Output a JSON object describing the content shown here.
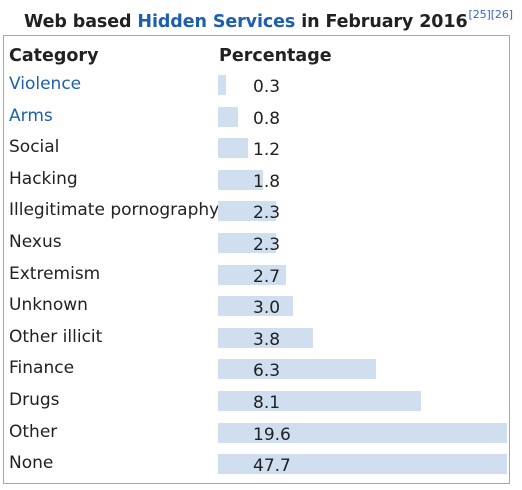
{
  "caption": {
    "prefix": "Web based ",
    "link": "Hidden Services",
    "suffix": " in February 2016",
    "refs": [
      "[25]",
      "[26]"
    ]
  },
  "colors": {
    "bar": "#cfdff0",
    "link": "#1c5fb1",
    "border": "#a2a9b1"
  },
  "chart_data": {
    "type": "bar",
    "orientation": "horizontal",
    "column_headers": [
      "Category",
      "Percentage"
    ],
    "categories": [
      "Violence",
      "Arms",
      "Social",
      "Hacking",
      "Illegitimate pornography",
      "Nexus",
      "Extremism",
      "Unknown",
      "Other illicit",
      "Finance",
      "Drugs",
      "Other",
      "None"
    ],
    "values": [
      0.3,
      0.8,
      1.2,
      1.8,
      2.3,
      2.3,
      2.7,
      3.0,
      3.8,
      6.3,
      8.1,
      19.6,
      47.7
    ],
    "value_labels": [
      "0.3",
      "0.8",
      "1.2",
      "1.8",
      "2.3",
      "2.3",
      "2.7",
      "3.0",
      "3.8",
      "6.3",
      "8.1",
      "19.6",
      "47.7"
    ],
    "linked_categories": [
      "Violence",
      "Arms"
    ]
  }
}
